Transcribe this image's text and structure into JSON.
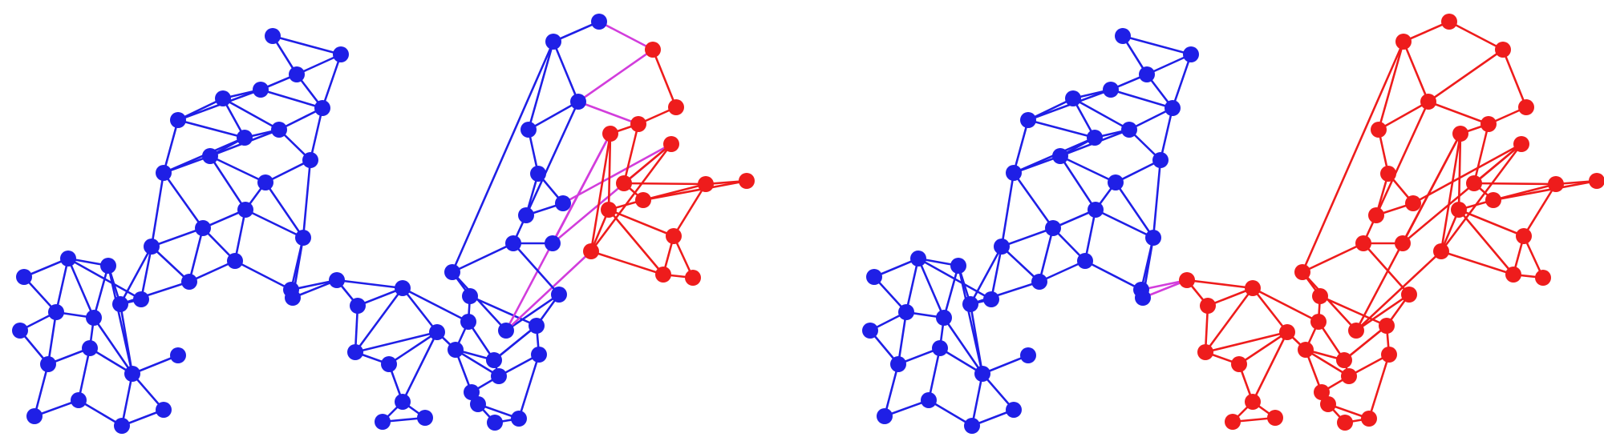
{
  "colors": {
    "part_a": "#1f1fe6",
    "part_b": "#ee1c1c",
    "cut": "#d23ddc",
    "background": "#ffffff"
  },
  "panels": [
    {
      "name": "left-graph-partition",
      "description_visible_text": ""
    },
    {
      "name": "right-graph-partition",
      "description_visible_text": ""
    }
  ]
}
